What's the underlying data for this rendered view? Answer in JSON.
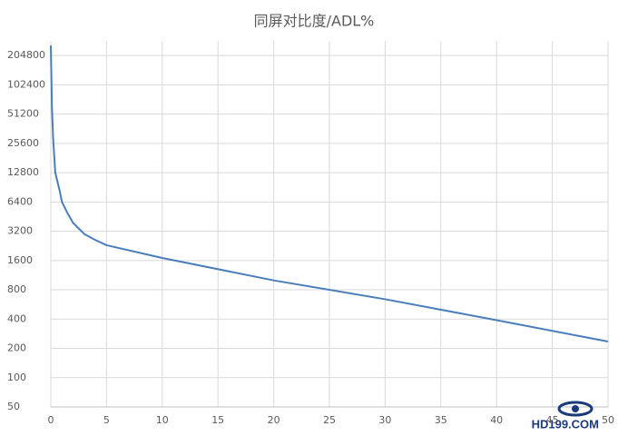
{
  "chart_data": {
    "type": "line",
    "title": "同屏对比度/ADL%",
    "x": [
      0,
      0.1,
      0.2,
      0.4,
      0.8,
      1,
      1.5,
      2,
      3,
      4,
      5,
      10,
      20,
      30,
      40,
      50
    ],
    "series": [
      {
        "name": "同屏对比度",
        "color": "#4a7ebb",
        "values": [
          260000,
          60000,
          30000,
          12800,
          8300,
          6400,
          4900,
          3900,
          3000,
          2600,
          2300,
          1700,
          1000,
          640,
          390,
          235
        ]
      }
    ],
    "xlim": [
      0,
      50
    ],
    "xticks": [
      0,
      5,
      10,
      15,
      20,
      25,
      30,
      35,
      40,
      45,
      50
    ],
    "ylim": [
      50,
      290000
    ],
    "yticks": [
      50,
      100,
      200,
      400,
      800,
      1600,
      3200,
      6400,
      12800,
      25600,
      51200,
      102400,
      204800
    ],
    "log_scale_y": true,
    "log_base": 2,
    "grid": true,
    "watermark": "HD199.COM"
  }
}
